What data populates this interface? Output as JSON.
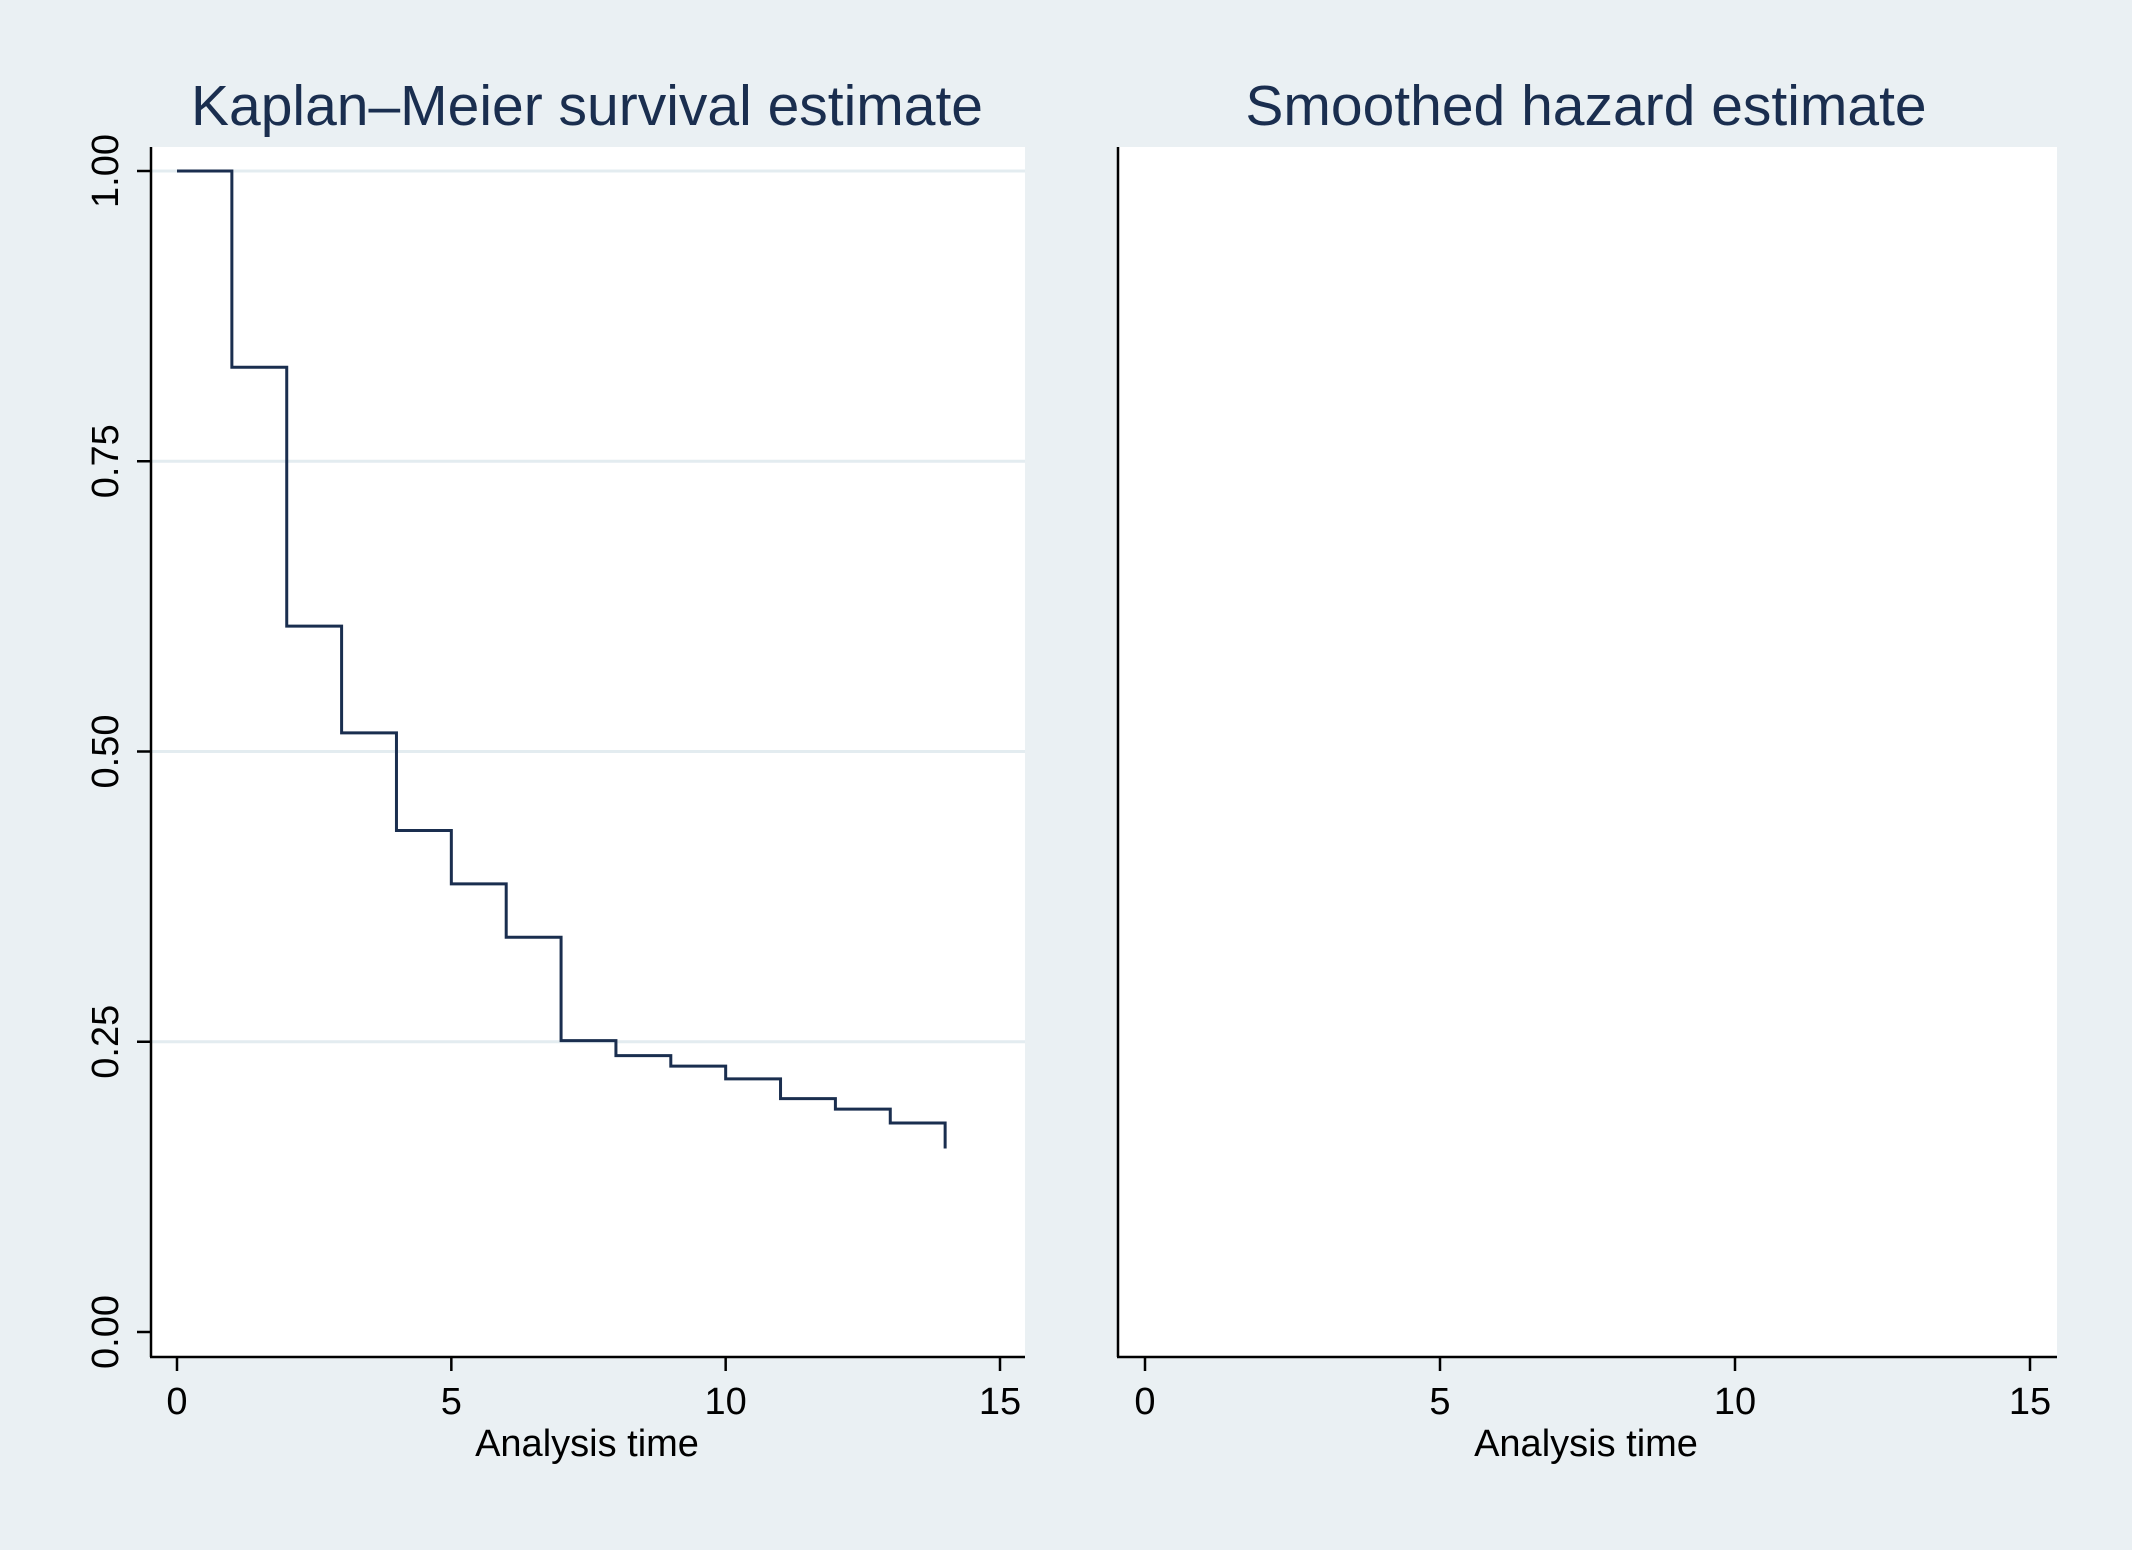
{
  "chart_data": [
    {
      "type": "line",
      "title": "Kaplan–Meier survival estimate",
      "xlabel": "Analysis time",
      "ylabel": "",
      "xlim": [
        0,
        15
      ],
      "ylim": [
        0,
        1
      ],
      "xticks": [
        "0",
        "5",
        "10",
        "15"
      ],
      "xtick_values": [
        0,
        5,
        10,
        15
      ],
      "yticks": [
        "0.00",
        "0.25",
        "0.50",
        "0.75",
        "1.00"
      ],
      "ytick_values": [
        0,
        0.25,
        0.5,
        0.75,
        1
      ],
      "grid": true,
      "step": true,
      "series": [
        {
          "color": "#1a2e4f",
          "x": [
            0,
            1,
            2,
            3,
            4,
            5,
            6,
            7,
            8,
            9,
            10,
            11,
            12,
            13,
            14
          ],
          "y": [
            1.0,
            0.831,
            0.608,
            0.516,
            0.432,
            0.386,
            0.34,
            0.251,
            0.238,
            0.229,
            0.218,
            0.201,
            0.192,
            0.18,
            0.158
          ]
        }
      ]
    },
    {
      "type": "line",
      "title": "Smoothed hazard estimate",
      "xlabel": "Analysis time",
      "ylabel": "",
      "xlim": [
        0,
        15
      ],
      "xticks": [
        "0",
        "5",
        "10",
        "15"
      ],
      "xtick_values": [
        0,
        5,
        10,
        15
      ],
      "grid": false,
      "series": []
    }
  ]
}
